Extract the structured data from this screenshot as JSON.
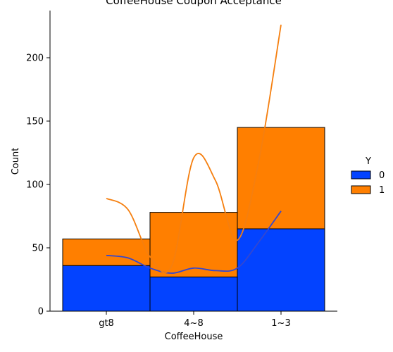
{
  "chart_data": {
    "type": "bar",
    "title": "CoffeeHouse Coupon Acceptance",
    "xlabel": "CoffeeHouse",
    "ylabel": "Count",
    "categories": [
      "gt8",
      "4~8",
      "1~3"
    ],
    "ylim": [
      0,
      240
    ],
    "yticks": [
      0,
      50,
      100,
      150,
      200
    ],
    "stacked": true,
    "legend": {
      "title": "Y",
      "placement": "right"
    },
    "series": [
      {
        "name": "0",
        "color": "#0343ff",
        "values": [
          36,
          27,
          65
        ]
      },
      {
        "name": "1",
        "color": "#ff7f00",
        "values": [
          21,
          51,
          80
        ]
      }
    ],
    "kde_curves": [
      {
        "series": "0",
        "color": "#3447d0",
        "x": [
          0,
          0.25,
          0.5,
          0.75,
          1.0,
          1.25,
          1.5,
          1.75,
          2.0
        ],
        "y": [
          44,
          42,
          34,
          30,
          34,
          32,
          34,
          55,
          79
        ]
      },
      {
        "series": "1",
        "color": "#f57f0f",
        "x": [
          0,
          0.25,
          0.5,
          0.75,
          1.0,
          1.25,
          1.5,
          1.75,
          2.0
        ],
        "y": [
          89,
          80,
          43,
          36,
          121,
          103,
          56,
          120,
          226
        ]
      }
    ]
  }
}
